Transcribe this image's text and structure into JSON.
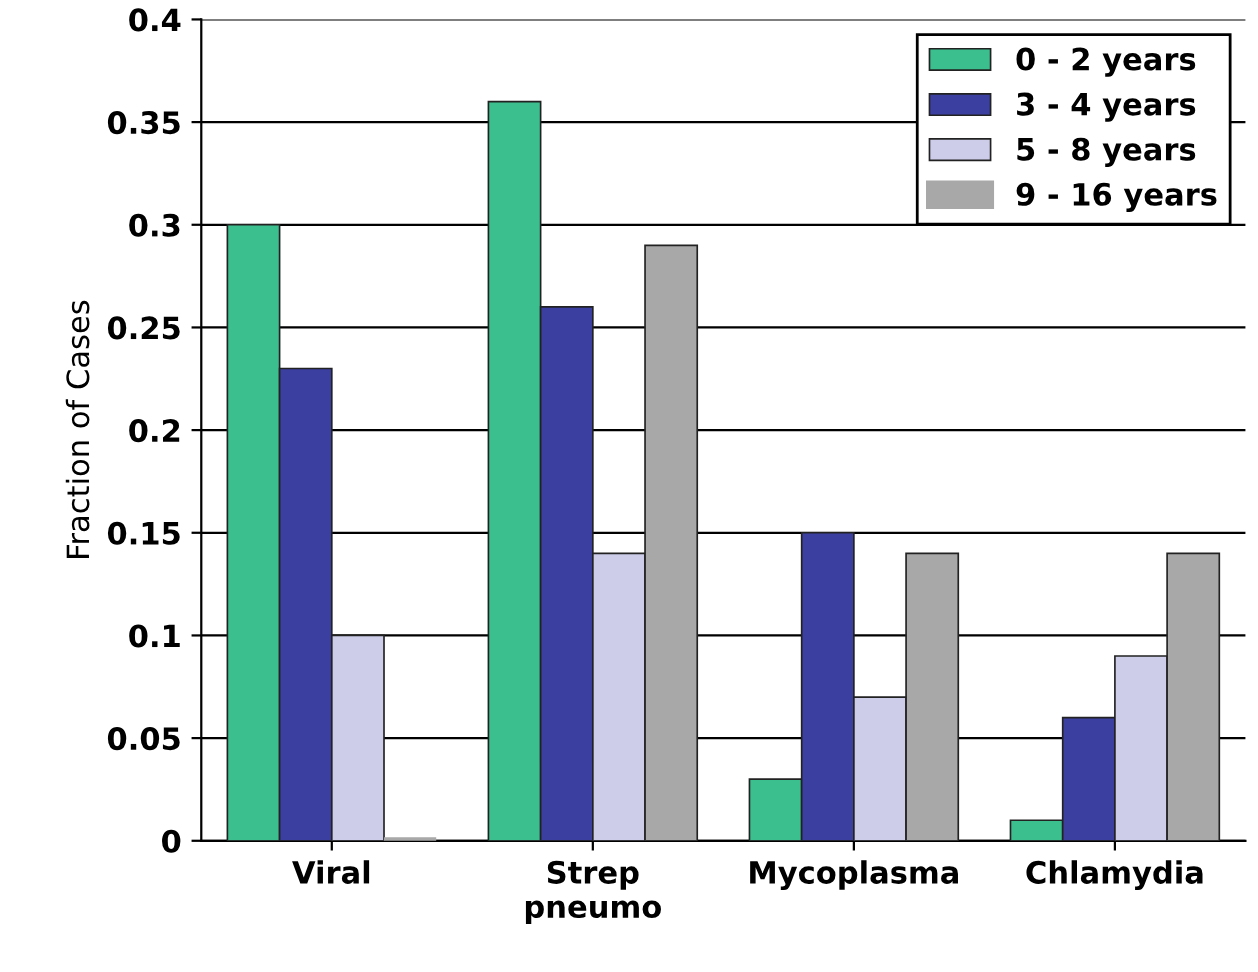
{
  "chart_data": {
    "type": "bar",
    "ylabel": "Fraction of Cases",
    "categories": [
      "Viral",
      "Strep\npneumo",
      "Mycoplasma",
      "Chlamydia"
    ],
    "series": [
      {
        "name": "0 - 2 years",
        "color": "#3cbf8f",
        "values": [
          0.3,
          0.36,
          0.03,
          0.01
        ]
      },
      {
        "name": "3 - 4 years",
        "color": "#3b3fa0",
        "values": [
          0.23,
          0.26,
          0.15,
          0.06
        ]
      },
      {
        "name": "5 - 8 years",
        "color": "#cdcdea",
        "values": [
          0.1,
          0.14,
          0.07,
          0.09
        ]
      },
      {
        "name": "9 - 16 years",
        "color": "#a8a8a8",
        "values": [
          0,
          0.29,
          0.14,
          0.14
        ]
      }
    ],
    "ylim": [
      0,
      0.4
    ],
    "yticks": [
      0,
      0.05,
      0.1,
      0.15,
      0.2,
      0.25,
      0.3,
      0.35,
      0.4
    ],
    "grid": "y",
    "legend": "top right"
  }
}
